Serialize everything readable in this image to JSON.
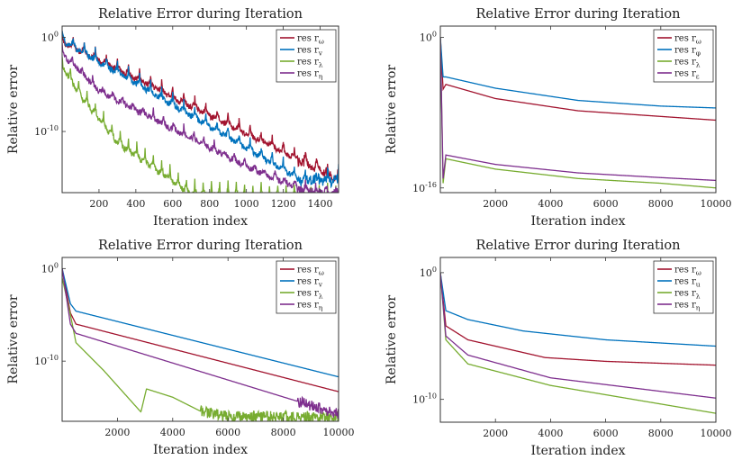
{
  "chart_data": [
    {
      "type": "line",
      "title": "Relative Error during Iteration",
      "xlabel": "Iteration index",
      "ylabel": "Relative error",
      "xlim": [
        0,
        1500
      ],
      "xticks": [
        200,
        400,
        600,
        800,
        1000,
        1200,
        1400
      ],
      "ylim_log10": [
        -16.5,
        1.2
      ],
      "yticks": [
        {
          "exp": 0,
          "label": "10^0"
        },
        {
          "exp": -10,
          "label": "10^-10"
        }
      ],
      "legend": "top-right",
      "series": [
        {
          "name": "res r_ω",
          "color": "#a2142f",
          "points": [
            [
              0,
              0.4
            ],
            [
              1500,
              -14.2
            ]
          ],
          "oscillation": 1.2,
          "period": 60
        },
        {
          "name": "res r_v",
          "color": "#0072bd",
          "points": [
            [
              0,
              0.6
            ],
            [
              1300,
              -14.3
            ],
            [
              1500,
              -14.3
            ]
          ],
          "oscillation": 1.2,
          "period": 60
        },
        {
          "name": "res r_λ",
          "color": "#77ac30",
          "points": [
            [
              0,
              -2
            ],
            [
              100,
              -5
            ],
            [
              300,
              -10
            ],
            [
              700,
              -15.5
            ],
            [
              1500,
              -16.0
            ]
          ],
          "oscillation": 1.5,
          "period": 45
        },
        {
          "name": "res r_η",
          "color": "#7e2f8e",
          "points": [
            [
              0,
              -1
            ],
            [
              200,
              -5
            ],
            [
              1000,
              -13
            ],
            [
              1300,
              -15.5
            ],
            [
              1500,
              -16.0
            ]
          ],
          "oscillation": 1.0,
          "period": 55
        }
      ]
    },
    {
      "type": "line",
      "title": "Relative Error during Iteration",
      "xlabel": "Iteration index",
      "ylabel": "Relative error",
      "xlim": [
        0,
        10000
      ],
      "xticks": [
        2000,
        4000,
        6000,
        8000,
        10000
      ],
      "ylim_log10": [
        -16.5,
        1.2
      ],
      "yticks": [
        {
          "exp": 0,
          "label": "10^0"
        },
        {
          "exp": -16,
          "label": "10^-16"
        }
      ],
      "legend": "top-right",
      "series": [
        {
          "name": "res r_ω",
          "color": "#a2142f",
          "points": [
            [
              0,
              0
            ],
            [
              100,
              -5.5
            ],
            [
              200,
              -5.0
            ],
            [
              2000,
              -6.5
            ],
            [
              5000,
              -7.8
            ],
            [
              8000,
              -8.4
            ],
            [
              10000,
              -8.8
            ]
          ]
        },
        {
          "name": "res r_φ",
          "color": "#0072bd",
          "points": [
            [
              0,
              0
            ],
            [
              100,
              -4.2
            ],
            [
              200,
              -4.2
            ],
            [
              2000,
              -5.4
            ],
            [
              5000,
              -6.7
            ],
            [
              8000,
              -7.3
            ],
            [
              10000,
              -7.5
            ]
          ]
        },
        {
          "name": "res r_λ",
          "color": "#77ac30",
          "points": [
            [
              0,
              0
            ],
            [
              100,
              -15.5
            ],
            [
              200,
              -12.9
            ],
            [
              2000,
              -14.0
            ],
            [
              5000,
              -15.0
            ],
            [
              8000,
              -15.5
            ],
            [
              10000,
              -16.0
            ]
          ]
        },
        {
          "name": "res r_ε",
          "color": "#7e2f8e",
          "points": [
            [
              0,
              0
            ],
            [
              100,
              -15.0
            ],
            [
              200,
              -12.5
            ],
            [
              2000,
              -13.5
            ],
            [
              5000,
              -14.4
            ],
            [
              8000,
              -14.9
            ],
            [
              10000,
              -15.2
            ]
          ]
        }
      ]
    },
    {
      "type": "line",
      "title": "Relative Error during Iteration",
      "xlabel": "Iteration index",
      "ylabel": "Relative error",
      "xlim": [
        0,
        10000
      ],
      "xticks": [
        2000,
        4000,
        6000,
        8000,
        10000
      ],
      "ylim_log10": [
        -16.5,
        1.2
      ],
      "yticks": [
        {
          "exp": 0,
          "label": "10^0"
        },
        {
          "exp": -10,
          "label": "10^-10"
        }
      ],
      "legend": "top-right",
      "series": [
        {
          "name": "res r_ω",
          "color": "#a2142f",
          "points": [
            [
              0,
              0
            ],
            [
              300,
              -4.8
            ],
            [
              500,
              -6.0
            ],
            [
              10000,
              -13.3
            ]
          ]
        },
        {
          "name": "res r_v",
          "color": "#0072bd",
          "points": [
            [
              0,
              0
            ],
            [
              300,
              -3.8
            ],
            [
              500,
              -4.6
            ],
            [
              10000,
              -11.7
            ]
          ]
        },
        {
          "name": "res r_λ",
          "color": "#77ac30",
          "points": [
            [
              0,
              -1
            ],
            [
              300,
              -5.0
            ],
            [
              500,
              -8.0
            ],
            [
              1500,
              -11.0
            ],
            [
              2850,
              -15.5
            ],
            [
              3050,
              -13.0
            ],
            [
              4000,
              -13.9
            ],
            [
              5000,
              -15.4
            ],
            [
              6000,
              -16.0
            ],
            [
              10000,
              -16.0
            ]
          ],
          "noise_from": 5000
        },
        {
          "name": "res r_η",
          "color": "#7e2f8e",
          "points": [
            [
              0,
              0
            ],
            [
              300,
              -6.0
            ],
            [
              500,
              -7.0
            ],
            [
              10000,
              -15.7
            ]
          ],
          "noise_from": 8500
        }
      ]
    },
    {
      "type": "line",
      "title": "Relative Error during Iteration",
      "xlabel": "Iteration index",
      "ylabel": "Relative error",
      "xlim": [
        0,
        10000
      ],
      "xticks": [
        2000,
        4000,
        6000,
        8000,
        10000
      ],
      "ylim_log10": [
        -11.8,
        1.2
      ],
      "yticks": [
        {
          "exp": 0,
          "label": "10^0"
        },
        {
          "exp": -10,
          "label": "10^-10"
        }
      ],
      "legend": "top-right",
      "series": [
        {
          "name": "res r_ω",
          "color": "#a2142f",
          "points": [
            [
              0,
              0
            ],
            [
              200,
              -4.2
            ],
            [
              1000,
              -5.3
            ],
            [
              3800,
              -6.7
            ],
            [
              6000,
              -7.0
            ],
            [
              10000,
              -7.3
            ]
          ]
        },
        {
          "name": "res r_u",
          "color": "#0072bd",
          "points": [
            [
              0,
              0
            ],
            [
              200,
              -3.0
            ],
            [
              1000,
              -3.7
            ],
            [
              3000,
              -4.6
            ],
            [
              6000,
              -5.3
            ],
            [
              10000,
              -5.8
            ]
          ]
        },
        {
          "name": "res r_λ",
          "color": "#77ac30",
          "points": [
            [
              0,
              0
            ],
            [
              200,
              -5.3
            ],
            [
              1000,
              -7.2
            ],
            [
              4000,
              -8.9
            ],
            [
              10000,
              -11.1
            ]
          ]
        },
        {
          "name": "res r_η",
          "color": "#7e2f8e",
          "points": [
            [
              0,
              0
            ],
            [
              200,
              -5.0
            ],
            [
              1000,
              -6.5
            ],
            [
              4000,
              -8.3
            ],
            [
              10000,
              -9.9
            ]
          ]
        }
      ]
    }
  ]
}
